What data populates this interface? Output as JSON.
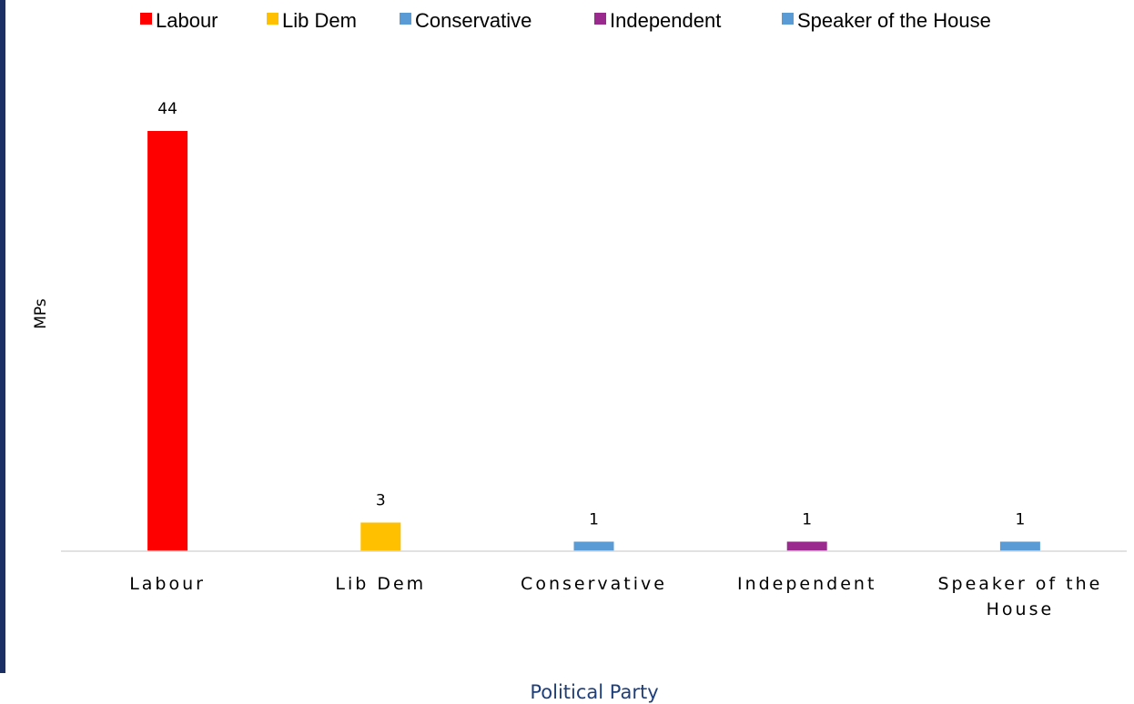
{
  "chart_data": {
    "type": "bar",
    "categories": [
      "Labour",
      "Lib Dem",
      "Conservative",
      "Independent",
      "Speaker of the House"
    ],
    "values": [
      44,
      3,
      1,
      1,
      1
    ],
    "colors": [
      "#ff0000",
      "#ffc000",
      "#5b9bd5",
      "#9b2a8f",
      "#5b9bd5"
    ],
    "data_labels": [
      "44",
      "3",
      "1",
      "1",
      "1"
    ],
    "legend": [
      {
        "label": "Labour",
        "color": "#ff0000"
      },
      {
        "label": "Lib Dem",
        "color": "#ffc000"
      },
      {
        "label": "Conservative",
        "color": "#5b9bd5"
      },
      {
        "label": "Independent",
        "color": "#9b2a8f"
      },
      {
        "label": "Speaker of the House",
        "color": "#5b9bd5"
      }
    ],
    "legend_position": "top",
    "xlabel": "Political Party",
    "ylabel": "MPs",
    "ylim": [
      0,
      44
    ],
    "grid": false
  }
}
